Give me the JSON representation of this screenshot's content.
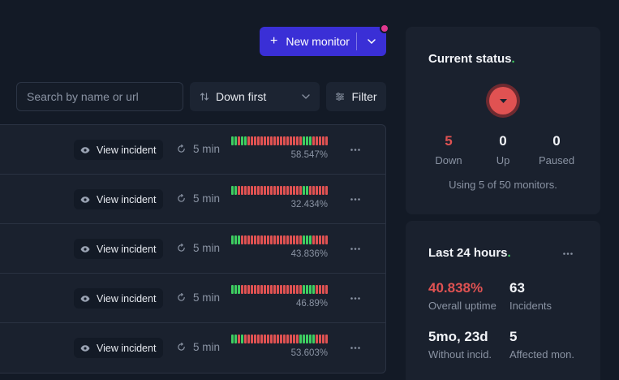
{
  "header": {
    "new_monitor_label": "New monitor",
    "accent": "#3a2fd6",
    "notification_color": "#e0388f"
  },
  "toolbar": {
    "search_placeholder": "Search by name or url",
    "sort_label": "Down first",
    "filter_label": "Filter"
  },
  "monitors": [
    {
      "action_label": "View incident",
      "frequency": "5 min",
      "uptime": "58.547%",
      "history": [
        "up",
        "up",
        "down",
        "up",
        "up",
        "down",
        "down",
        "down",
        "down",
        "down",
        "down",
        "down",
        "down",
        "down",
        "down",
        "down",
        "down",
        "down",
        "down",
        "down",
        "down",
        "down",
        "up",
        "up",
        "up",
        "down",
        "down",
        "down",
        "down",
        "down"
      ]
    },
    {
      "action_label": "View incident",
      "frequency": "5 min",
      "uptime": "32.434%",
      "history": [
        "up",
        "up",
        "down",
        "down",
        "down",
        "down",
        "down",
        "down",
        "down",
        "down",
        "down",
        "down",
        "down",
        "down",
        "down",
        "down",
        "down",
        "down",
        "down",
        "down",
        "down",
        "down",
        "up",
        "up",
        "down",
        "down",
        "down",
        "down",
        "down",
        "down"
      ]
    },
    {
      "action_label": "View incident",
      "frequency": "5 min",
      "uptime": "43.836%",
      "history": [
        "up",
        "up",
        "up",
        "down",
        "down",
        "down",
        "down",
        "down",
        "down",
        "down",
        "down",
        "down",
        "down",
        "down",
        "down",
        "down",
        "down",
        "down",
        "down",
        "down",
        "down",
        "down",
        "up",
        "up",
        "up",
        "down",
        "down",
        "down",
        "down",
        "down"
      ]
    },
    {
      "action_label": "View incident",
      "frequency": "5 min",
      "uptime": "46.89%",
      "history": [
        "up",
        "up",
        "up",
        "down",
        "down",
        "down",
        "down",
        "down",
        "down",
        "down",
        "down",
        "down",
        "down",
        "down",
        "down",
        "down",
        "down",
        "down",
        "down",
        "down",
        "down",
        "down",
        "up",
        "up",
        "up",
        "up",
        "down",
        "down",
        "down",
        "down"
      ]
    },
    {
      "action_label": "View incident",
      "frequency": "5 min",
      "uptime": "53.603%",
      "history": [
        "up",
        "up",
        "down",
        "up",
        "down",
        "down",
        "down",
        "down",
        "down",
        "down",
        "down",
        "down",
        "down",
        "down",
        "down",
        "down",
        "down",
        "down",
        "down",
        "down",
        "down",
        "up",
        "up",
        "up",
        "up",
        "up",
        "down",
        "down",
        "down",
        "down"
      ]
    }
  ],
  "current_status": {
    "title": "Current status",
    "title_dot": ".",
    "down_count": "5",
    "down_label": "Down",
    "up_count": "0",
    "up_label": "Up",
    "paused_count": "0",
    "paused_label": "Paused",
    "usage_text": "Using 5 of 50 monitors."
  },
  "last_24h": {
    "title": "Last 24 hours",
    "title_dot": ".",
    "overall_uptime": "40.838%",
    "overall_uptime_label": "Overall uptime",
    "incidents": "63",
    "incidents_label": "Incidents",
    "without_incidents": "5mo, 23d",
    "without_incidents_label": "Without incid.",
    "affected": "5",
    "affected_label": "Affected mon."
  },
  "colors": {
    "up": "#3ecf61",
    "down": "#e05252"
  }
}
